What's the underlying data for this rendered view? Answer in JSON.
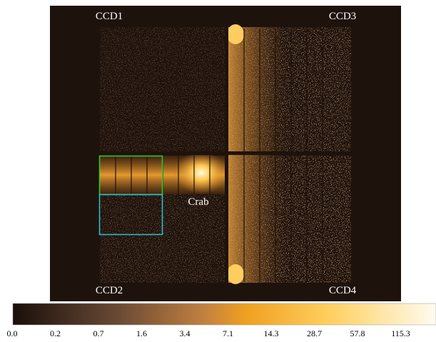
{
  "image": {
    "ccd_labels": [
      "CCD1",
      "CCD3",
      "CCD2",
      "CCD4"
    ],
    "source_label": "Crab"
  },
  "colorbar": {
    "tick_labels": [
      "0.0",
      "0.2",
      "0.7",
      "1.6",
      "3.4",
      "7.1",
      "14.3",
      "28.7",
      "57.8",
      "115.3"
    ]
  }
}
